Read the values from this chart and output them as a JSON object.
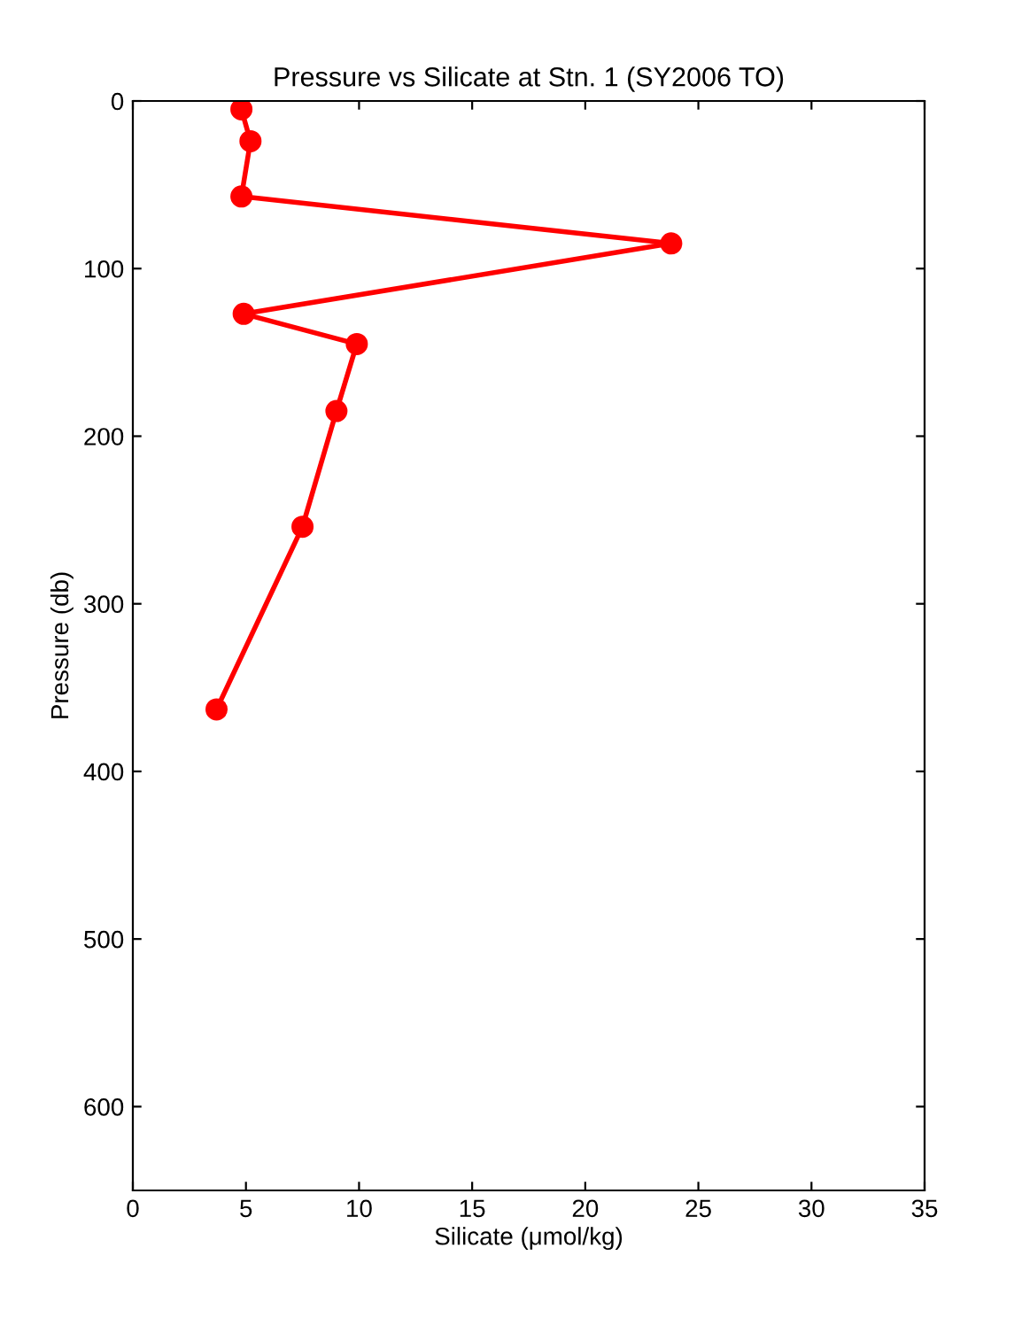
{
  "chart_data": {
    "type": "line",
    "title": "Pressure vs Silicate at Stn. 1 (SY2006 TO)",
    "xlabel": "Silicate (μmol/kg)",
    "ylabel": "Pressure (db)",
    "series": [
      {
        "color": "#ff0000",
        "x": [
          4.8,
          5.2,
          4.8,
          23.8,
          4.9,
          9.9,
          9.0,
          7.5,
          3.7
        ],
        "values": [
          5,
          24,
          57,
          85,
          127,
          145,
          185,
          254,
          363
        ]
      }
    ],
    "xlim": [
      0,
      35
    ],
    "xticks": [
      0,
      5,
      10,
      15,
      20,
      25,
      30,
      35
    ],
    "ylim": [
      650,
      0
    ],
    "yticks": [
      0,
      100,
      200,
      300,
      400,
      500,
      600
    ],
    "marker": "circle",
    "line_style": "solid",
    "grid": false
  }
}
